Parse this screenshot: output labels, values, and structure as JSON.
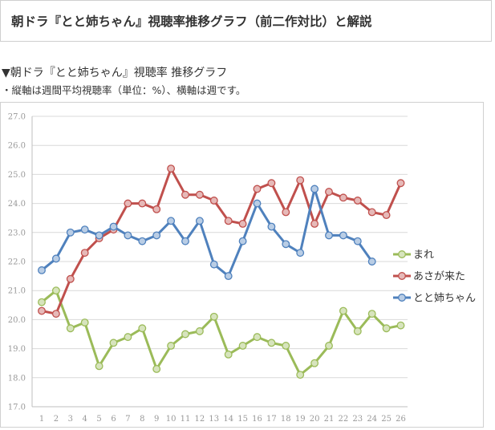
{
  "header": {
    "title": "朝ドラ『とと姉ちゃん』視聴率推移グラフ（前二作対比）と解説"
  },
  "section": {
    "heading": "▼朝ドラ『とと姉ちゃん』視聴率 推移グラフ",
    "note": "・縦軸は週間平均視聴率（単位：%）、横軸は週です。"
  },
  "chart_data": {
    "type": "line",
    "x": [
      1,
      2,
      3,
      4,
      5,
      6,
      7,
      8,
      9,
      10,
      11,
      12,
      13,
      14,
      15,
      16,
      17,
      18,
      19,
      20,
      21,
      22,
      23,
      24,
      25,
      26
    ],
    "ylim": [
      17.0,
      27.0
    ],
    "yticks": [
      "17.0",
      "18.0",
      "19.0",
      "20.0",
      "21.0",
      "22.0",
      "23.0",
      "24.0",
      "25.0",
      "26.0",
      "27.0"
    ],
    "xticks": [
      "1",
      "2",
      "3",
      "4",
      "5",
      "6",
      "7",
      "8",
      "9",
      "10",
      "11",
      "12",
      "13",
      "14",
      "15",
      "16",
      "17",
      "18",
      "19",
      "20",
      "21",
      "22",
      "23",
      "24",
      "25",
      "26"
    ],
    "grid": "horizontal",
    "legend": "right",
    "series": [
      {
        "name": "まれ",
        "color": "#9bbb59",
        "marker": "#d7e4bd",
        "values": [
          20.6,
          21.0,
          19.7,
          19.9,
          18.4,
          19.2,
          19.4,
          19.7,
          18.3,
          19.1,
          19.5,
          19.6,
          20.1,
          18.8,
          19.1,
          19.4,
          19.2,
          19.1,
          18.1,
          18.5,
          19.1,
          20.3,
          19.6,
          20.2,
          19.7,
          19.8
        ]
      },
      {
        "name": "あさが来た",
        "color": "#c0504d",
        "marker": "#e6b9b8",
        "values": [
          20.3,
          20.2,
          21.4,
          22.3,
          22.8,
          23.1,
          24.0,
          24.0,
          23.8,
          25.2,
          24.3,
          24.3,
          24.1,
          23.4,
          23.3,
          24.5,
          24.7,
          23.7,
          24.8,
          23.3,
          24.4,
          24.2,
          24.1,
          23.7,
          23.6,
          24.7
        ]
      },
      {
        "name": "とと姉ちゃん",
        "color": "#4f81bd",
        "marker": "#b9cde5",
        "values": [
          21.7,
          22.1,
          23.0,
          23.1,
          22.9,
          23.2,
          22.9,
          22.7,
          22.9,
          23.4,
          22.7,
          23.4,
          21.9,
          21.5,
          22.7,
          24.0,
          23.2,
          22.6,
          22.3,
          24.5,
          22.9,
          22.9,
          22.7,
          22.0,
          null,
          null
        ]
      }
    ]
  }
}
